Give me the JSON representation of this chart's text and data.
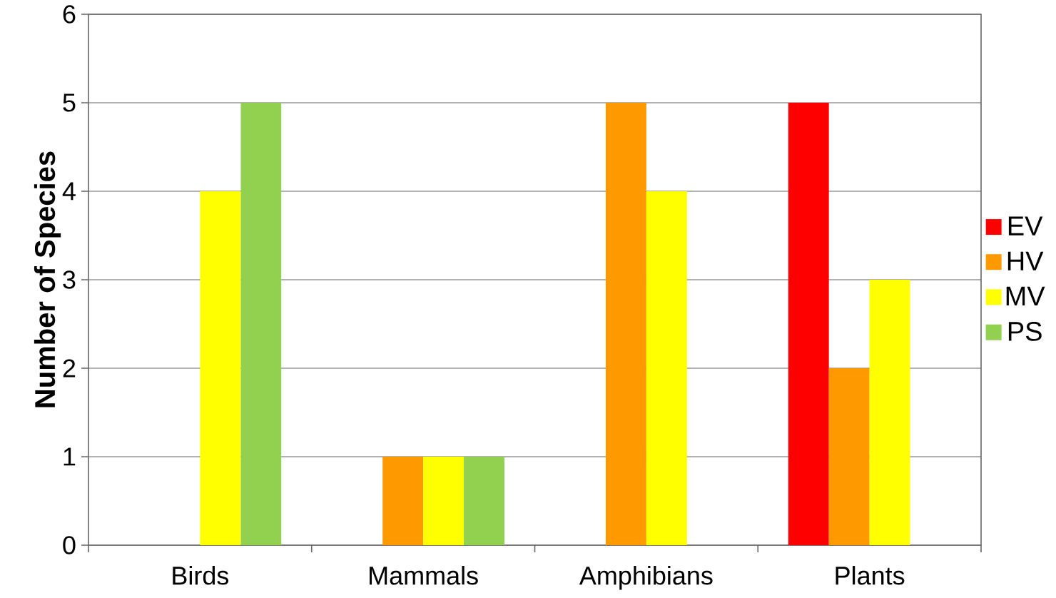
{
  "chart_data": {
    "type": "bar",
    "ylabel": "Number of Species",
    "categories": [
      "Birds",
      "Mammals",
      "Amphibians",
      "Plants"
    ],
    "series": [
      {
        "name": "EV",
        "color": "#ff0000",
        "values": [
          null,
          null,
          null,
          5
        ]
      },
      {
        "name": "HV",
        "color": "#ff9900",
        "values": [
          null,
          1,
          5,
          2
        ]
      },
      {
        "name": "MV",
        "color": "#ffff00",
        "values": [
          4,
          1,
          4,
          3
        ]
      },
      {
        "name": "PS",
        "color": "#92d050",
        "values": [
          5,
          1,
          null,
          null
        ]
      }
    ],
    "ylim": [
      0,
      6
    ],
    "yticks": [
      0,
      1,
      2,
      3,
      4,
      5,
      6
    ],
    "grid": "y",
    "legend": "right"
  }
}
